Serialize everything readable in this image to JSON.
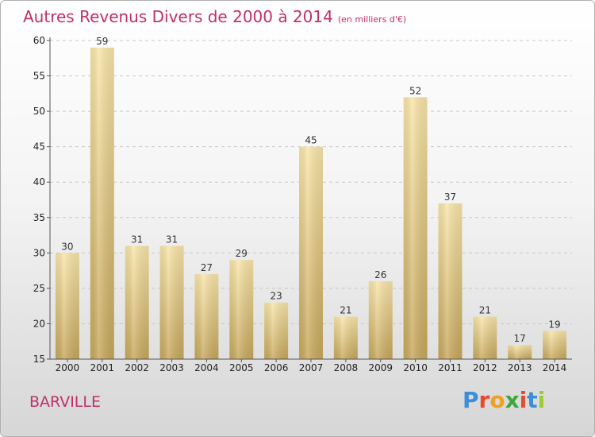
{
  "title": "Autres Revenus Divers de 2000 à 2014",
  "unit_label": "(en milliers d'€)",
  "place_name": "BARVILLE",
  "logo_text": "Proxiti",
  "colors": {
    "title": "#c0306a",
    "bar_light": "#f7e0a0",
    "bar_dark": "#c8a858"
  },
  "chart_data": {
    "type": "bar",
    "title": "Autres Revenus Divers de 2000 à 2014",
    "xlabel": "",
    "ylabel": "",
    "ylim": [
      15,
      60
    ],
    "yticks": [
      15,
      20,
      25,
      30,
      35,
      40,
      45,
      50,
      55,
      60
    ],
    "categories": [
      "2000",
      "2001",
      "2002",
      "2003",
      "2004",
      "2005",
      "2006",
      "2007",
      "2008",
      "2009",
      "2010",
      "2011",
      "2012",
      "2013",
      "2014"
    ],
    "values": [
      30,
      59,
      31,
      31,
      27,
      29,
      23,
      45,
      21,
      26,
      52,
      37,
      21,
      17,
      19
    ],
    "grid": true,
    "legend": "none"
  }
}
